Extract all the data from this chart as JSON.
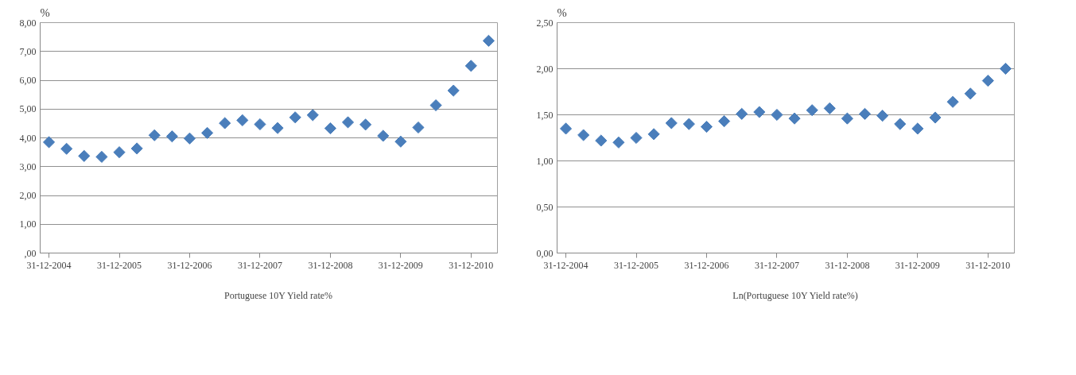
{
  "chart_data": [
    {
      "type": "scatter",
      "ylabel": "%",
      "categories": [
        "31-12-2004",
        null,
        null,
        null,
        "31-12-2005",
        null,
        null,
        null,
        "31-12-2006",
        null,
        null,
        null,
        "31-12-2007",
        null,
        null,
        null,
        "31-12-2008",
        null,
        null,
        null,
        "31-12-2009",
        null,
        null,
        null,
        "31-12-2010",
        null
      ],
      "series": [
        {
          "name": "Portuguese 10Y Yield rate%",
          "color": "#4a7ebb",
          "values": [
            3.85,
            3.62,
            3.37,
            3.34,
            3.5,
            3.63,
            4.09,
            4.05,
            3.98,
            4.17,
            4.51,
            4.61,
            4.47,
            4.34,
            4.71,
            4.79,
            4.33,
            4.54,
            4.46,
            4.07,
            3.87,
            4.36,
            5.13,
            5.64,
            6.5,
            7.37
          ]
        }
      ],
      "ylim": [
        0,
        8
      ],
      "yticks": [
        {
          "value": 0,
          "label": ",00"
        },
        {
          "value": 1,
          "label": "1,00"
        },
        {
          "value": 2,
          "label": "2,00"
        },
        {
          "value": 3,
          "label": "3,00"
        },
        {
          "value": 4,
          "label": "4,00"
        },
        {
          "value": 5,
          "label": "5,00"
        },
        {
          "value": 6,
          "label": "6,00"
        },
        {
          "value": 7,
          "label": "7,00"
        },
        {
          "value": 8,
          "label": "8,00"
        }
      ],
      "grid": "y",
      "legend": "bottom",
      "marker": "diamond"
    },
    {
      "type": "scatter",
      "ylabel": "%",
      "categories": [
        "31-12-2004",
        null,
        null,
        null,
        "31-12-2005",
        null,
        null,
        null,
        "31-12-2006",
        null,
        null,
        null,
        "31-12-2007",
        null,
        null,
        null,
        "31-12-2008",
        null,
        null,
        null,
        "31-12-2009",
        null,
        null,
        null,
        "31-12-2010",
        null
      ],
      "series": [
        {
          "name": "Ln(Portuguese 10Y Yield rate%)",
          "color": "#4a7ebb",
          "values": [
            1.35,
            1.28,
            1.22,
            1.2,
            1.25,
            1.29,
            1.41,
            1.4,
            1.37,
            1.43,
            1.51,
            1.53,
            1.5,
            1.46,
            1.55,
            1.57,
            1.46,
            1.51,
            1.49,
            1.4,
            1.35,
            1.47,
            1.64,
            1.73,
            1.87,
            2.0
          ]
        }
      ],
      "ylim": [
        0,
        2.5
      ],
      "yticks": [
        {
          "value": 0,
          "label": "0,00"
        },
        {
          "value": 0.5,
          "label": "0,50"
        },
        {
          "value": 1,
          "label": "1,00"
        },
        {
          "value": 1.5,
          "label": "1,50"
        },
        {
          "value": 2,
          "label": "2,00"
        },
        {
          "value": 2.5,
          "label": "2,50"
        }
      ],
      "grid": "y",
      "legend": "bottom",
      "marker": "diamond"
    }
  ]
}
